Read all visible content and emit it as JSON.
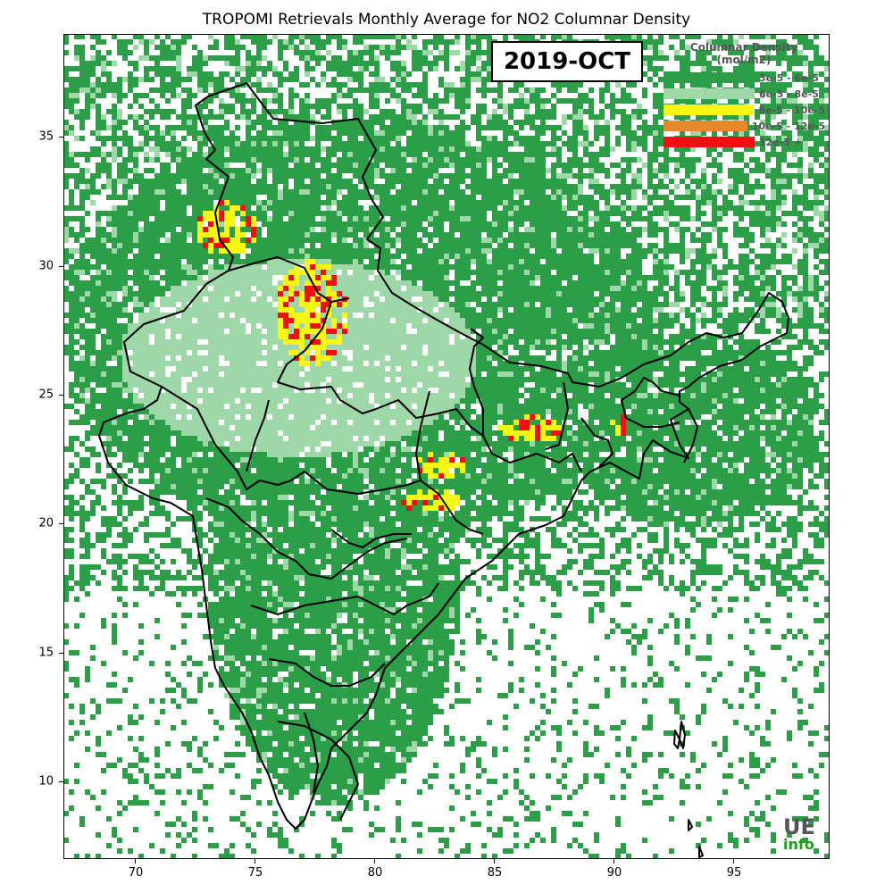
{
  "title": "TROPOMI Retrievals Monthly Average for NO2 Columnar Density",
  "period": "2019-OCT",
  "legend": {
    "title": "Columnar Density (mol/m2)",
    "items": [
      {
        "label": "5e-5 - 6e-5",
        "color": "#2c9e48"
      },
      {
        "label": "6e-5 - 8e-5",
        "color": "#9ed8a8"
      },
      {
        "label": "8e-5 - 10e-5",
        "color": "#f7f714"
      },
      {
        "label": "10e-5 - 12e-5",
        "color": "#e88a2a"
      },
      {
        "label": "12e-5 +",
        "color": "#ee1111"
      }
    ]
  },
  "axes": {
    "x_ticks": [
      "70",
      "75",
      "80",
      "85",
      "90",
      "95"
    ],
    "y_ticks": [
      "35",
      "30",
      "25",
      "20",
      "15",
      "10"
    ]
  },
  "watermark": {
    "line1": "UE",
    "line2": "info"
  }
}
